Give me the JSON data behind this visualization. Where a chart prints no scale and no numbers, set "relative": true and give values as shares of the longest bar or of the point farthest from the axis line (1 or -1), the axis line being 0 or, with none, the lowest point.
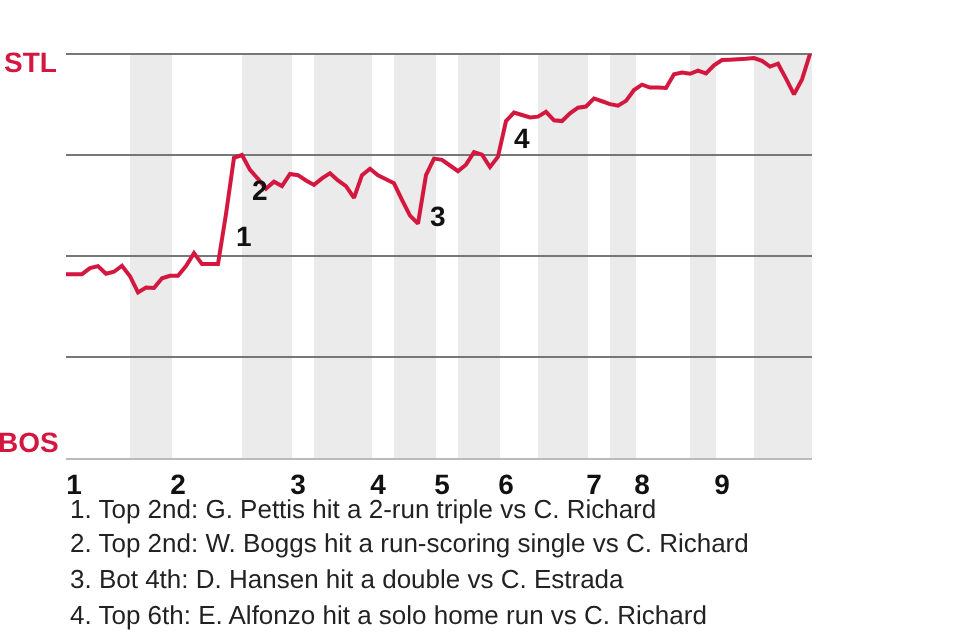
{
  "chart_data": {
    "type": "line",
    "relative": true,
    "categories": [
      null,
      "1",
      null,
      null,
      null,
      null,
      null,
      null,
      null,
      null,
      null,
      null,
      null,
      null,
      "2",
      null,
      null,
      null,
      null,
      null,
      null,
      null,
      null,
      null,
      null,
      null,
      null,
      null,
      null,
      "3",
      null,
      null,
      null,
      null,
      null,
      null,
      null,
      null,
      null,
      "4",
      null,
      null,
      null,
      null,
      null,
      null,
      null,
      "5",
      null,
      null,
      null,
      null,
      null,
      null,
      null,
      "6",
      null,
      null,
      null,
      null,
      null,
      null,
      null,
      null,
      null,
      null,
      "7",
      null,
      null,
      null,
      null,
      null,
      "8",
      null,
      null,
      null,
      null,
      null,
      null,
      null,
      null,
      null,
      "9",
      null,
      null,
      null,
      null,
      null,
      null,
      null,
      null,
      null,
      null,
      null
    ],
    "series": [
      {
        "color": "#d3173f",
        "values": [
          0.455,
          0.455,
          0.455,
          0.47,
          0.475,
          0.456,
          0.461,
          0.476,
          0.45,
          0.41,
          0.422,
          0.421,
          0.445,
          0.451,
          0.451,
          0.475,
          0.507,
          0.48,
          0.48,
          0.48,
          0.604,
          0.743,
          0.75,
          0.713,
          0.691,
          0.667,
          0.684,
          0.673,
          0.703,
          0.7,
          0.687,
          0.676,
          0.692,
          0.705,
          0.687,
          0.673,
          0.644,
          0.7,
          0.716,
          0.7,
          0.69,
          0.68,
          0.639,
          0.6,
          0.58,
          0.7,
          0.741,
          0.738,
          0.724,
          0.71,
          0.726,
          0.757,
          0.751,
          0.72,
          0.746,
          0.834,
          0.855,
          0.849,
          0.843,
          0.845,
          0.857,
          0.836,
          0.834,
          0.853,
          0.867,
          0.87,
          0.89,
          0.883,
          0.876,
          0.872,
          0.884,
          0.911,
          0.924,
          0.917,
          0.917,
          0.916,
          0.95,
          0.954,
          0.951,
          0.959,
          0.952,
          0.972,
          0.985,
          0.986,
          0.987,
          0.988,
          0.99,
          0.983,
          0.969,
          0.976,
          0.939,
          0.9,
          0.937,
          1
        ]
      }
    ],
    "annotations": [
      "1",
      "2",
      "3",
      "4",
      "STL",
      "BOS",
      "1. Top 2nd: G. Pettis hit a 2-run triple vs C. Richard",
      "2. Top 2nd: W. Boggs hit a run-scoring single vs C. Richard",
      "3. Bot 4th: D. Hansen hit a double vs C. Estrada",
      "4. Top 6th: E. Alfonzo hit a solo home run vs C. Richard"
    ]
  }
}
